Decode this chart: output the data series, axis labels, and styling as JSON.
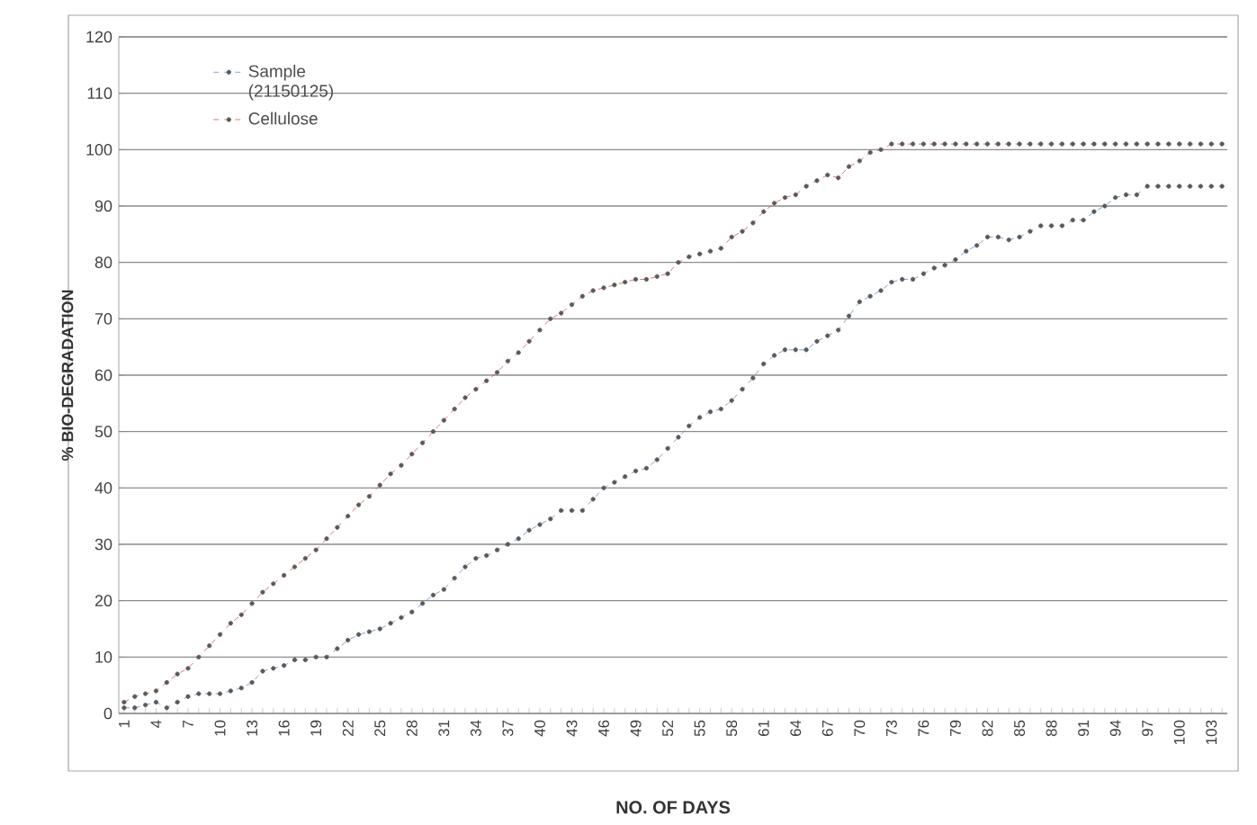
{
  "chart_data": {
    "type": "line",
    "xlabel": "NO. OF DAYS",
    "ylabel": "% BIO-DEGRADATION",
    "categories": [
      "1",
      null,
      null,
      "4",
      null,
      null,
      "7",
      null,
      null,
      "10",
      null,
      null,
      "13",
      null,
      null,
      "16",
      null,
      null,
      "19",
      null,
      null,
      "22",
      null,
      null,
      "25",
      null,
      null,
      "28",
      null,
      null,
      "31",
      null,
      null,
      "34",
      null,
      null,
      "37",
      null,
      null,
      "40",
      null,
      null,
      "43",
      null,
      null,
      "46",
      null,
      null,
      "49",
      null,
      null,
      "52",
      null,
      null,
      "55",
      null,
      null,
      "58",
      null,
      null,
      "61",
      null,
      null,
      "64",
      null,
      null,
      "67",
      null,
      null,
      "70",
      null,
      null,
      "73",
      null,
      null,
      "76",
      null,
      null,
      "79",
      null,
      null,
      "82",
      null,
      null,
      "85",
      null,
      null,
      "88",
      null,
      null,
      "91",
      null,
      null,
      "94",
      null,
      null,
      "97",
      null,
      null,
      "100",
      null,
      null,
      "103",
      null
    ],
    "series": [
      {
        "name": "Sample (21150125)",
        "color": "#5b8fd0",
        "values": [
          1,
          1,
          1.5,
          2,
          1,
          2,
          3,
          3.5,
          3.5,
          3.5,
          4,
          4.5,
          5.5,
          7.5,
          8,
          8.5,
          9.5,
          9.5,
          10,
          10,
          11.5,
          13,
          14,
          14.5,
          15,
          16,
          17,
          18,
          19.5,
          21,
          22,
          24,
          26,
          27.5,
          28,
          29,
          30,
          31,
          32.5,
          33.5,
          34.5,
          36,
          36,
          36,
          38,
          40,
          41,
          42,
          43,
          43.5,
          45,
          47,
          49,
          51,
          52.5,
          53.5,
          54,
          55.5,
          57.5,
          59.5,
          62,
          63.5,
          64.5,
          64.5,
          64.5,
          66,
          67,
          68,
          70.5,
          73,
          74,
          75,
          76.5,
          77,
          77,
          78,
          79,
          79.5,
          80.5,
          82,
          83,
          84.5,
          84.5,
          84,
          84.5,
          85.5,
          86.5,
          86.5,
          86.5,
          87.5,
          87.5,
          89,
          90,
          91.5,
          92,
          92,
          93.5,
          93.5,
          93.5,
          93.5,
          93.5,
          93.5,
          93.5,
          93.5
        ]
      },
      {
        "name": "Cellulose",
        "color": "#e0504a",
        "values": [
          2,
          3,
          3.5,
          4,
          5.5,
          7,
          8,
          10,
          12,
          14,
          16,
          17.5,
          19.5,
          21.5,
          23,
          24.5,
          26,
          27.5,
          29,
          31,
          33,
          35,
          37,
          38.5,
          40.5,
          42.5,
          44,
          46,
          48,
          50,
          52,
          54,
          56,
          57.5,
          59,
          60.5,
          62.5,
          64,
          66,
          68,
          70,
          71,
          72.5,
          74,
          75,
          75.5,
          76,
          76.5,
          77,
          77,
          77.5,
          78,
          80,
          81,
          81.5,
          82,
          82.5,
          84.5,
          85.5,
          87,
          89,
          90.5,
          91.5,
          92,
          93.5,
          94.5,
          95.5,
          95,
          97,
          98,
          99.5,
          100,
          101,
          101,
          101,
          101,
          101,
          101,
          101,
          101,
          101,
          101,
          101,
          101,
          101,
          101,
          101,
          101,
          101,
          101,
          101,
          101,
          101,
          101,
          101,
          101,
          101,
          101,
          101,
          101,
          101,
          101,
          101,
          101
        ]
      }
    ],
    "ylim": [
      0,
      120
    ],
    "yticks": [
      0,
      10,
      20,
      30,
      40,
      50,
      60,
      70,
      80,
      90,
      100,
      110,
      120
    ],
    "grid": "y",
    "legend": "top left",
    "marker": "circle",
    "line_style": "dashed"
  }
}
